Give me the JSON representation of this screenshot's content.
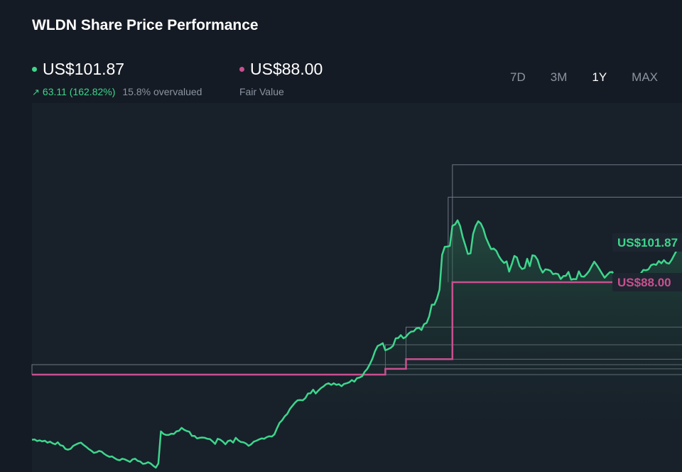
{
  "title": "WLDN Share Price Performance",
  "price": {
    "value": "US$101.87",
    "change": "63.11 (162.82%)",
    "valuation": "15.8% overvalued",
    "color": "#3dd68c"
  },
  "fair_value": {
    "value": "US$88.00",
    "label": "Fair Value",
    "color": "#c8508f"
  },
  "tabs": [
    "7D",
    "3M",
    "1Y",
    "MAX"
  ],
  "active_tab": "1Y",
  "chart_data": {
    "type": "line",
    "ylim": [
      30,
      130
    ],
    "series": [
      {
        "values": [
          38.9,
          39.0,
          38.5,
          38.7,
          38.4,
          38.6,
          38.0,
          38.3,
          37.8,
          37.5,
          38.1,
          37.2,
          37.0,
          36.0,
          35.8,
          36.1,
          37.0,
          37.4,
          37.8,
          38.0,
          37.3,
          36.7,
          36.0,
          35.5,
          34.8,
          35.0,
          35.4,
          35.2,
          34.5,
          34.0,
          33.6,
          33.7,
          33.2,
          32.7,
          32.5,
          33.0,
          32.8,
          32.4,
          32.0,
          32.8,
          33.0,
          32.3,
          32.1,
          31.4,
          31.5,
          31.9,
          31.5,
          30.8,
          30.2,
          31.5,
          41.5,
          40.7,
          40.4,
          40.4,
          40.8,
          40.7,
          41.5,
          41.7,
          42.6,
          42.0,
          41.6,
          41.4,
          40.1,
          40.1,
          39.3,
          39.5,
          39.6,
          39.5,
          39.2,
          39.1,
          38.4,
          37.6,
          39.2,
          38.9,
          38.3,
          37.5,
          38.5,
          38.7,
          38.0,
          39.5,
          38.7,
          38.2,
          38.1,
          37.7,
          37.0,
          37.5,
          38.3,
          38.6,
          39.0,
          39.3,
          39.2,
          39.7,
          40.0,
          39.9,
          40.6,
          42.5,
          44.2,
          45.0,
          46.2,
          47.0,
          48.5,
          49.5,
          50.5,
          51.2,
          51.3,
          51.2,
          51.9,
          53.3,
          53.4,
          54.5,
          53.3,
          54.2,
          55.0,
          55.5,
          56.2,
          56.5,
          56.0,
          56.5,
          56.0,
          56.2,
          55.6,
          56.3,
          56.5,
          56.8,
          57.5,
          57.0,
          58.1,
          58.3,
          58.7,
          60.1,
          61.0,
          62.5,
          64.2,
          66.5,
          68.1,
          68.5,
          69.0,
          66.8,
          67.1,
          67.5,
          68.2,
          70.5,
          70.6,
          71.5,
          70.5,
          71.0,
          72.0,
          72.6,
          72.7,
          73.6,
          73.8,
          73.1,
          74.9,
          75.3,
          77.4,
          81.0,
          81.0,
          82.9,
          85.7,
          96.5,
          99.0,
          99.1,
          99.3,
          105.6,
          106.0,
          107.3,
          105.5,
          102.0,
          99.5,
          96.8,
          97.0,
          103.0,
          105.5,
          107.0,
          106.3,
          104.6,
          101.9,
          100.0,
          98.3,
          98.5,
          97.8,
          96.1,
          94.9,
          94.0,
          94.5,
          91.3,
          93.6,
          96.2,
          95.7,
          93.1,
          92.1,
          92.4,
          95.3,
          93.0,
          96.4,
          96.2,
          95.0,
          92.5,
          91.0,
          92.0,
          91.9,
          91.6,
          90.5,
          90.7,
          90.5,
          89.0,
          89.9,
          90.0,
          91.2,
          88.8,
          89.0,
          88.9,
          91.4,
          89.8,
          89.7,
          90.5,
          91.5,
          93.0,
          94.4,
          93.3,
          92.0,
          90.7,
          89.4,
          90.3,
          91.1,
          91.2,
          89.3,
          89.1,
          90.0,
          90.0,
          86.8,
          90.3,
          89.5,
          89.2,
          90.4,
          90.0,
          90.7,
          91.8,
          91.7,
          92.0,
          93.3,
          93.6,
          93.4,
          94.6,
          93.9,
          94.9,
          94.0,
          93.8,
          95.0,
          96.5,
          98.0,
          100.0,
          101.87
        ]
      },
      {
        "values": [
          59.2,
          59.2,
          59.2,
          59.2,
          59.2,
          59.2,
          59.2,
          59.2,
          59.2,
          59.2,
          59.2,
          59.2,
          59.2,
          59.2,
          59.2,
          59.2,
          59.2,
          59.2,
          59.2,
          59.2,
          59.2,
          59.2,
          59.2,
          59.2,
          59.2,
          59.2,
          59.2,
          59.2,
          59.2,
          59.2,
          59.2,
          59.2,
          59.2,
          59.2,
          59.2,
          59.2,
          59.2,
          59.2,
          59.2,
          59.2,
          59.2,
          59.2,
          59.2,
          59.2,
          59.2,
          59.2,
          59.2,
          59.2,
          59.2,
          59.2,
          59.2,
          59.2,
          59.2,
          59.2,
          59.2,
          59.2,
          59.2,
          59.2,
          59.2,
          59.2,
          59.2,
          59.2,
          59.2,
          59.2,
          59.2,
          59.2,
          59.2,
          59.2,
          59.2,
          59.2,
          59.2,
          59.2,
          59.2,
          59.2,
          59.2,
          59.2,
          59.2,
          59.2,
          59.2,
          59.2,
          59.2,
          59.2,
          59.2,
          59.2,
          59.2,
          59.2,
          59.2,
          59.2,
          59.2,
          59.2,
          59.2,
          59.2,
          59.2,
          59.2,
          59.2,
          59.2,
          59.2,
          59.2,
          59.2,
          59.2,
          59.2,
          59.2,
          59.2,
          59.2,
          59.2,
          59.2,
          59.2,
          59.2,
          59.2,
          59.2,
          59.2,
          59.2,
          59.2,
          59.2,
          59.2,
          59.2,
          59.2,
          59.2,
          59.2,
          59.2,
          59.2,
          59.2,
          59.2,
          59.2,
          59.2,
          59.2,
          59.2,
          59.2,
          59.2,
          59.2,
          59.2,
          59.2,
          59.2,
          59.2,
          59.2,
          59.2,
          59.2,
          61.0,
          61.0,
          61.0,
          61.0,
          61.0,
          61.0,
          61.0,
          61.0,
          64.0,
          64.0,
          64.0,
          64.0,
          64.0,
          64.0,
          64.0,
          64.0,
          64.0,
          64.0,
          64.0,
          64.0,
          64.0,
          64.0,
          64.0,
          64.0,
          64.0,
          64.0,
          88.0,
          88.0,
          88.0,
          88.0,
          88.0,
          88.0,
          88.0,
          88.0,
          88.0,
          88.0,
          88.0,
          88.0,
          88.0,
          88.0,
          88.0,
          88.0,
          88.0,
          88.0,
          88.0,
          88.0,
          88.0,
          88.0,
          88.0,
          88.0,
          88.0,
          88.0,
          88.0,
          88.0,
          88.0,
          88.0,
          88.0,
          88.0,
          88.0,
          88.0,
          88.0,
          88.0,
          88.0,
          88.0,
          88.0,
          88.0,
          88.0,
          88.0,
          88.0,
          88.0,
          88.0,
          88.0,
          88.0,
          88.0,
          88.0,
          88.0,
          88.0,
          88.0,
          88.0,
          88.0,
          88.0,
          88.0,
          88.0,
          88.0,
          88.0,
          88.0,
          88.0,
          88.0,
          88.0,
          88.0,
          88.0,
          88.0,
          88.0,
          88.0,
          88.0,
          88.0,
          88.0,
          88.0,
          88.0,
          88.0,
          88.0,
          88.0,
          88.0,
          88.0,
          88.0,
          88.0,
          88.0,
          88.0,
          88.0,
          88.0,
          88.0,
          88.0,
          88.0,
          88.0,
          88.0,
          88.0,
          88.0,
          88.0,
          88.0,
          88.0,
          88.0,
          88.0,
          88.0,
          88.0,
          88.0
        ]
      }
    ],
    "range_bands": [
      {
        "segment": 1,
        "low": 59.2,
        "high": 62.3
      },
      {
        "segment": 2,
        "low": 61.0,
        "high": 68.5
      },
      {
        "segment": 3,
        "low": 64.0,
        "high": 74.0
      },
      {
        "segment": 4,
        "low": 88.0,
        "high": 124.6
      }
    ],
    "labels": {
      "price": "US$101.87",
      "fair_value": "US$88.00"
    }
  }
}
